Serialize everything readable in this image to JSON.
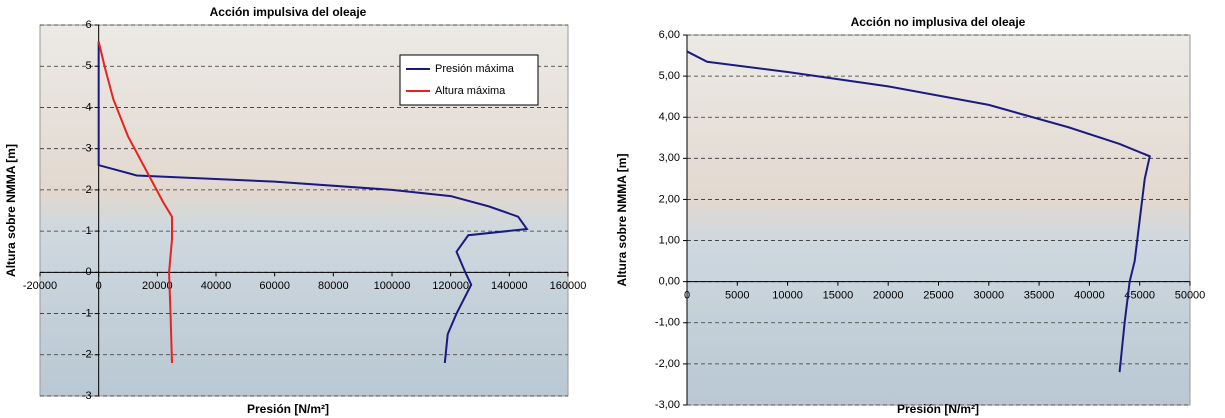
{
  "chart_data": [
    {
      "type": "line",
      "title": "Acción impulsiva del oleaje",
      "xlabel": "Presión [N/m²]",
      "ylabel": "Altura sobre NMMA [m]",
      "xlim": [
        -20000,
        160000
      ],
      "xticks": [
        -20000,
        0,
        20000,
        40000,
        60000,
        80000,
        100000,
        120000,
        140000,
        160000
      ],
      "ylim": [
        -3,
        6
      ],
      "yticks": [
        -3,
        -2,
        -1,
        0,
        1,
        2,
        3,
        4,
        5,
        6
      ],
      "grid": true,
      "legend": "upper right",
      "series": [
        {
          "name": "Presión máxima",
          "color": "#1a1a80",
          "x": [
            0,
            0,
            13000,
            60000,
            100000,
            120000,
            133000,
            143000,
            146000,
            126000,
            122000,
            125000,
            127000,
            122000,
            119000,
            118000
          ],
          "values": [
            5.6,
            2.6,
            2.35,
            2.2,
            2.0,
            1.85,
            1.6,
            1.35,
            1.05,
            0.9,
            0.5,
            0,
            -0.3,
            -1.0,
            -1.5,
            -2.2
          ]
        },
        {
          "name": "Altura máxima",
          "color": "#e8221e",
          "x": [
            0,
            2000,
            5000,
            10000,
            16000,
            22000,
            25000,
            25000,
            24000,
            24500,
            25000
          ],
          "values": [
            5.6,
            5.0,
            4.2,
            3.3,
            2.5,
            1.7,
            1.35,
            0.8,
            0,
            -1.0,
            -2.2
          ]
        }
      ]
    },
    {
      "type": "line",
      "title": "Acción no implusiva del oleaje",
      "xlabel": "Presión [N/m²]",
      "ylabel": "Altura sobre NMMA [m]",
      "xlim": [
        0,
        50000
      ],
      "xticks": [
        0,
        5000,
        10000,
        15000,
        20000,
        25000,
        30000,
        35000,
        40000,
        45000,
        50000
      ],
      "ylim": [
        -3,
        6
      ],
      "yticks": [
        {
          "value": -3,
          "label": "-3,00"
        },
        {
          "value": -2,
          "label": "-2,00"
        },
        {
          "value": -1,
          "label": "-1,00"
        },
        {
          "value": 0,
          "label": "0,00"
        },
        {
          "value": 1,
          "label": "1,00"
        },
        {
          "value": 2,
          "label": "2,00"
        },
        {
          "value": 3,
          "label": "3,00"
        },
        {
          "value": 4,
          "label": "4,00"
        },
        {
          "value": 5,
          "label": "5,00"
        },
        {
          "value": 6,
          "label": "6,00"
        }
      ],
      "grid": true,
      "series": [
        {
          "color": "#1a1a80",
          "x": [
            0,
            2000,
            10000,
            20000,
            30000,
            38000,
            43000,
            46000,
            45500,
            45000,
            44500,
            44000,
            43500,
            43000
          ],
          "values": [
            5.6,
            5.35,
            5.1,
            4.75,
            4.3,
            3.75,
            3.35,
            3.05,
            2.5,
            1.5,
            0.5,
            0,
            -1.0,
            -2.2
          ]
        }
      ]
    }
  ]
}
